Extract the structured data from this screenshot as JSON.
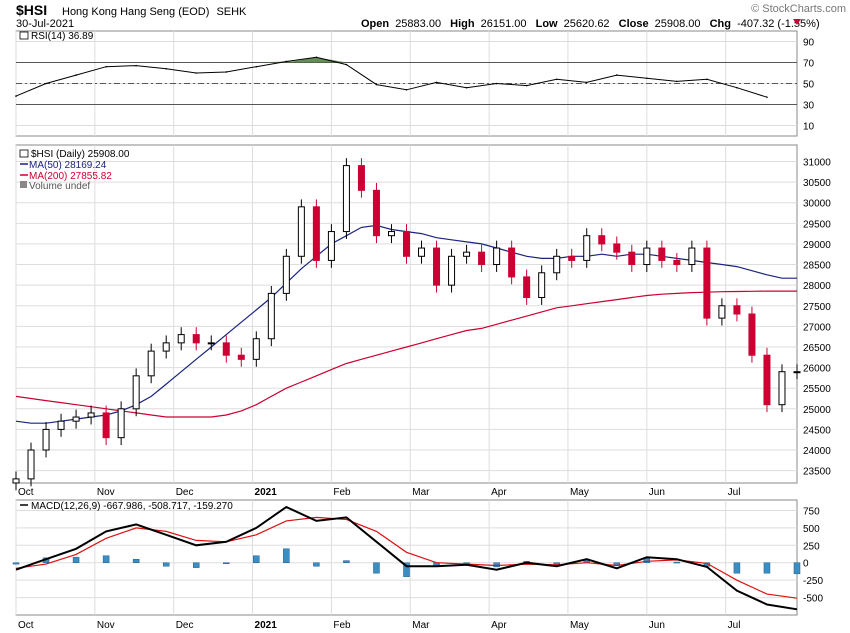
{
  "header": {
    "symbol": "$HSI",
    "name": "Hong Kong Hang Seng (EOD)",
    "exchange": "SEHK",
    "date": "30-Jul-2021",
    "watermark": "© StockCharts.com",
    "open_label": "Open",
    "open": "25883.00",
    "high_label": "High",
    "high": "26151.00",
    "low_label": "Low",
    "low": "25620.62",
    "close_label": "Close",
    "close": "25908.00",
    "chg_label": "Chg",
    "chg": "-407.32 (-1.55%)"
  },
  "colors": {
    "up_candle": "#000000",
    "down_candle": "#cc0033",
    "ma50": "#1a237e",
    "ma200": "#cc0033",
    "rsi_line": "#000000",
    "rsi_overbought_fill": "#4a7a3a",
    "macd_line": "#000000",
    "signal_line": "#dd1111",
    "histogram": "#3b8ec4",
    "grid": "#dddddd"
  },
  "chart_data": [
    {
      "type": "line",
      "panel": "RSI",
      "legend": "RSI(14) 36.89",
      "ylim": [
        0,
        100
      ],
      "y_ticks": [
        10,
        30,
        50,
        70,
        90
      ],
      "reference_lines": [
        30,
        50,
        70
      ],
      "x_labels": [
        "Oct",
        "Nov",
        "Dec",
        "2021",
        "Feb",
        "Mar",
        "Apr",
        "May",
        "Jun",
        "Jul"
      ],
      "x": [
        0,
        8,
        16,
        24,
        32,
        40,
        48,
        56,
        64,
        72,
        80,
        88,
        96,
        104,
        112,
        120,
        128,
        136,
        144,
        152,
        160,
        168,
        176,
        184,
        192,
        200
      ],
      "values": [
        38,
        50,
        58,
        66,
        67,
        64,
        60,
        61,
        66,
        71,
        75,
        68,
        49,
        44,
        51,
        46,
        50,
        48,
        54,
        51,
        58,
        55,
        52,
        54,
        46,
        37
      ]
    },
    {
      "type": "candlestick",
      "panel": "Price",
      "legend": [
        "$HSI (Daily) 25908.00",
        "MA(50) 28169.24",
        "MA(200) 27855.82",
        "Volume undef"
      ],
      "ylim": [
        23200,
        31400
      ],
      "y_ticks": [
        23500,
        24000,
        24500,
        25000,
        25500,
        26000,
        26500,
        27000,
        27500,
        28000,
        28500,
        29000,
        29500,
        30000,
        30500,
        31000
      ],
      "x_labels": [
        "Oct",
        "Nov",
        "Dec",
        "2021",
        "Feb",
        "Mar",
        "Apr",
        "May",
        "Jun",
        "Jul"
      ],
      "x_label_positions": [
        0,
        21,
        42,
        63,
        84,
        105,
        126,
        147,
        168,
        189
      ],
      "x": [
        0,
        4,
        8,
        12,
        16,
        20,
        24,
        28,
        32,
        36,
        40,
        44,
        48,
        52,
        56,
        60,
        64,
        68,
        72,
        76,
        80,
        84,
        88,
        92,
        96,
        100,
        104,
        108,
        112,
        116,
        120,
        124,
        128,
        132,
        136,
        140,
        144,
        148,
        152,
        156,
        160,
        164,
        168,
        172,
        176,
        180,
        184,
        188,
        192,
        196,
        200,
        204,
        208
      ],
      "close": [
        23300,
        24000,
        24500,
        24700,
        24800,
        24900,
        24300,
        25000,
        25800,
        26400,
        26600,
        26800,
        26600,
        26600,
        26300,
        26200,
        26700,
        27800,
        28700,
        29900,
        28600,
        29300,
        30900,
        30300,
        29200,
        29300,
        28700,
        28900,
        28000,
        28700,
        28800,
        28500,
        28900,
        28200,
        27700,
        28300,
        28700,
        28600,
        29200,
        29000,
        28800,
        28500,
        28900,
        28600,
        28500,
        28900,
        27200,
        27500,
        27300,
        26300,
        25100,
        25900,
        25900
      ],
      "ma50": [
        24700,
        24650,
        24650,
        24700,
        24750,
        24800,
        24850,
        24950,
        25100,
        25300,
        25600,
        25900,
        26200,
        26500,
        26800,
        27100,
        27400,
        27700,
        28050,
        28400,
        28700,
        29000,
        29200,
        29400,
        29450,
        29350,
        29300,
        29250,
        29150,
        29100,
        29050,
        29000,
        28900,
        28800,
        28700,
        28650,
        28650,
        28700,
        28700,
        28750,
        28700,
        28750,
        28750,
        28700,
        28650,
        28600,
        28550,
        28500,
        28450,
        28350,
        28250,
        28169,
        28169
      ],
      "ma200": [
        25300,
        25250,
        25200,
        25150,
        25100,
        25050,
        25000,
        24950,
        24900,
        24850,
        24800,
        24800,
        24800,
        24800,
        24850,
        24950,
        25100,
        25300,
        25500,
        25650,
        25800,
        25950,
        26100,
        26200,
        26300,
        26400,
        26500,
        26600,
        26700,
        26800,
        26900,
        26950,
        27050,
        27150,
        27250,
        27350,
        27450,
        27500,
        27550,
        27600,
        27650,
        27700,
        27750,
        27780,
        27800,
        27820,
        27830,
        27840,
        27845,
        27850,
        27855,
        27856,
        27856
      ]
    },
    {
      "type": "line",
      "panel": "MACD",
      "legend": "MACD(12,26,9) -667.986, -508.717, -159.270",
      "ylim": [
        -750,
        900
      ],
      "y_ticks": [
        -500,
        -250,
        0,
        250,
        500,
        750
      ],
      "x_labels": [
        "Oct",
        "Nov",
        "Dec",
        "2021",
        "Feb",
        "Mar",
        "Apr",
        "May",
        "Jun",
        "Jul"
      ],
      "x": [
        0,
        8,
        16,
        24,
        32,
        40,
        48,
        56,
        64,
        72,
        80,
        88,
        96,
        104,
        112,
        120,
        128,
        136,
        144,
        152,
        160,
        168,
        176,
        184,
        192,
        200,
        208
      ],
      "series": [
        {
          "name": "MACD",
          "values": [
            -100,
            50,
            200,
            450,
            550,
            400,
            250,
            300,
            500,
            800,
            600,
            650,
            300,
            -50,
            -50,
            -30,
            -100,
            0,
            -50,
            50,
            -80,
            80,
            50,
            -60,
            -400,
            -600,
            -668
          ]
        },
        {
          "name": "Signal",
          "values": [
            -80,
            -20,
            120,
            350,
            500,
            450,
            320,
            300,
            400,
            600,
            650,
            620,
            450,
            150,
            0,
            -20,
            -40,
            -20,
            -30,
            0,
            -40,
            20,
            40,
            -10,
            -250,
            -450,
            -509
          ]
        },
        {
          "name": "Histogram",
          "values": [
            -20,
            70,
            80,
            100,
            50,
            -50,
            -70,
            0,
            100,
            200,
            -50,
            30,
            -150,
            -200,
            -50,
            -10,
            -60,
            20,
            -20,
            50,
            -40,
            60,
            10,
            -50,
            -150,
            -150,
            -159
          ]
        }
      ]
    }
  ]
}
